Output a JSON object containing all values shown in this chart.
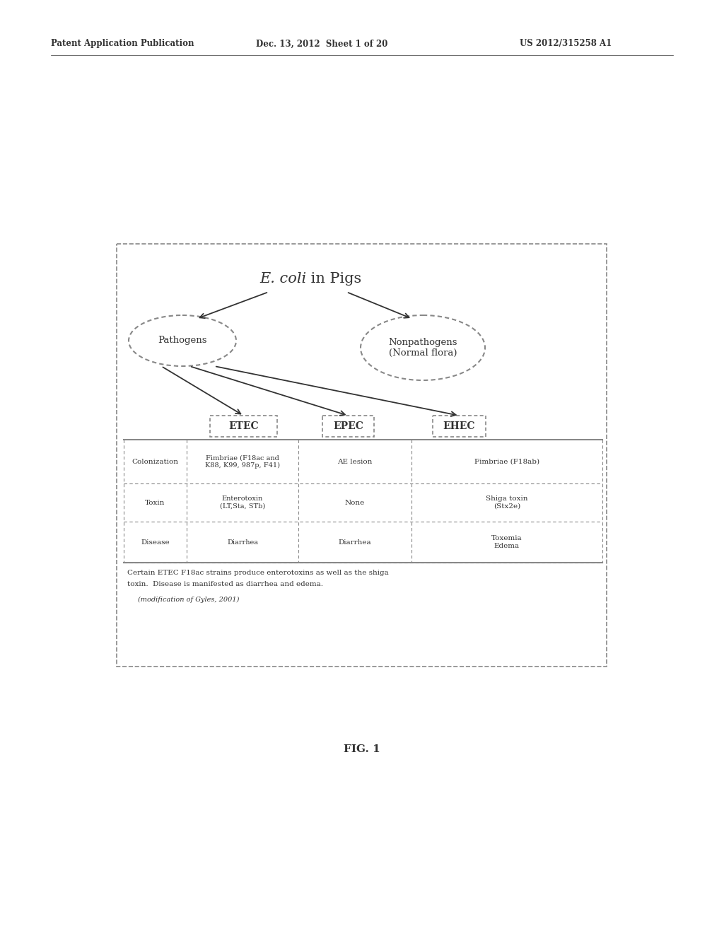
{
  "title_italic": "E. coli",
  "title_rest": " in Pigs",
  "header_left": "Patent Application Publication",
  "header_mid": "Dec. 13, 2012  Sheet 1 of 20",
  "header_right": "US 2012/315258 A1",
  "fig_label": "FIG. 1",
  "node_pathogens": "Pathogens",
  "node_nonpathogens": "Nonpathogens\n(Normal flora)",
  "box_etec": "ETEC",
  "box_epec": "EPEC",
  "box_ehec": "EHEC",
  "row_labels": [
    "Colonization",
    "Toxin",
    "Disease"
  ],
  "etec_col": [
    "Fimbriae (F18ac and\nK88, K99, 987p, F41)",
    "Enterotoxin\n(LT,Sta, STb)",
    "Diarrhea"
  ],
  "epec_col": [
    "AE lesion",
    "None",
    "Diarrhea"
  ],
  "ehec_col": [
    "Fimbriae (F18ab)",
    "Shiga toxin\n(Stx2e)",
    "Toxemia\nEdema"
  ],
  "footnote1": "Certain ETEC F18ac strains produce enterotoxins as well as the shiga",
  "footnote2": "toxin.  Disease is manifested as diarrhea and edema.",
  "footnote3": "(modification of Gyles, 2001)",
  "bg_color": "#ffffff",
  "text_color": "#333333",
  "border_color": "#888888",
  "font_size_header": 8.5,
  "font_size_title": 15,
  "font_size_nodes": 9.5,
  "font_size_boxes": 10,
  "font_size_table": 7.5,
  "font_size_footnote": 7.5,
  "font_size_fig": 11
}
